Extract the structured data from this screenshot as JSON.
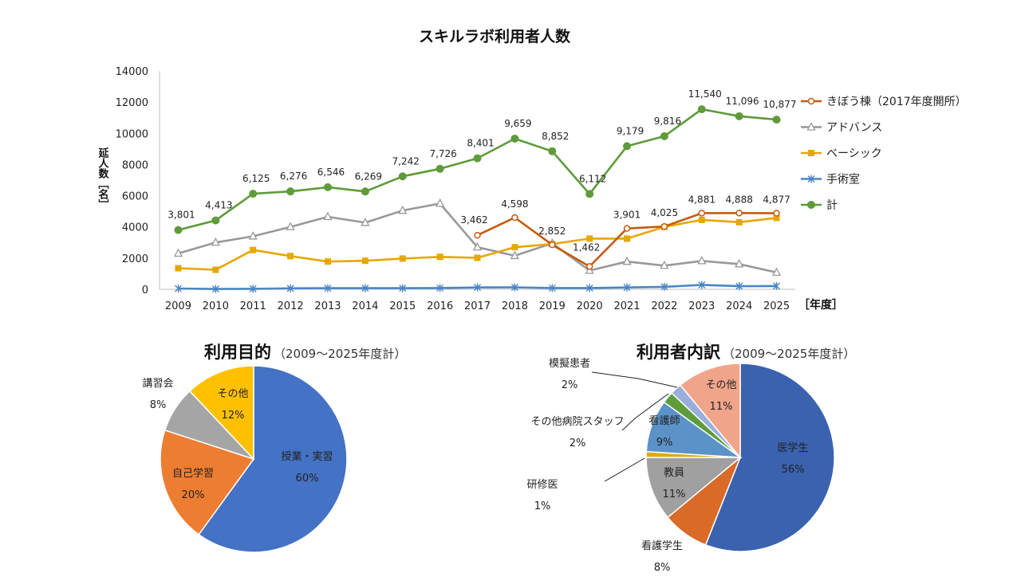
{
  "chart_data": [
    {
      "type": "line",
      "title": "スキルラボ利用者人数",
      "ylabel": "延人数［名］",
      "xlabel_unit": "［年度］",
      "ylim": [
        0,
        14000
      ],
      "yticks": [
        0,
        2000,
        4000,
        6000,
        8000,
        10000,
        12000,
        14000
      ],
      "grid": false,
      "legend_position": "right",
      "x": [
        "2009",
        "2010",
        "2011",
        "2012",
        "2013",
        "2014",
        "2015",
        "2016",
        "2017",
        "2018",
        "2019",
        "2020",
        "2021",
        "2022",
        "2023",
        "2024",
        "2025"
      ],
      "series": [
        {
          "name": "きぼう棟（2017年度開所）",
          "color": "#C55A11",
          "marker": "circle-open",
          "values": [
            null,
            null,
            null,
            null,
            null,
            null,
            null,
            null,
            3462,
            4598,
            2852,
            1462,
            3901,
            4025,
            4881,
            4888,
            4877
          ],
          "labels": [
            null,
            null,
            null,
            null,
            null,
            null,
            null,
            null,
            "3,462",
            "4,598",
            "2,852",
            "1,462",
            "3,901",
            "4,025",
            "4,881",
            "4,888",
            "4,877"
          ]
        },
        {
          "name": "アドバンス",
          "color": "#999999",
          "marker": "triangle-open",
          "values": [
            2300,
            3000,
            3400,
            4000,
            4650,
            4270,
            5050,
            5500,
            2700,
            2150,
            2950,
            1200,
            1780,
            1520,
            1820,
            1620,
            1080
          ]
        },
        {
          "name": "ベーシック",
          "color": "#E6A800",
          "marker": "square",
          "values": [
            1350,
            1250,
            2520,
            2130,
            1780,
            1830,
            1970,
            2080,
            2020,
            2700,
            2900,
            3250,
            3250,
            4000,
            4450,
            4300,
            4580
          ]
        },
        {
          "name": "手術室",
          "color": "#4A86C5",
          "marker": "asterisk",
          "values": [
            50,
            20,
            30,
            60,
            70,
            70,
            70,
            80,
            120,
            130,
            80,
            80,
            120,
            160,
            280,
            200,
            210
          ]
        },
        {
          "name": "計",
          "color": "#5E9B3A",
          "marker": "circle",
          "values": [
            3801,
            4413,
            6125,
            6276,
            6546,
            6269,
            7242,
            7726,
            8401,
            9659,
            8852,
            6112,
            9179,
            9816,
            11540,
            11096,
            10877
          ],
          "labels": [
            "3,801",
            "4,413",
            "6,125",
            "6,276",
            "6,546",
            "6,269",
            "7,242",
            "7,726",
            "8,401",
            "9,659",
            "8,852",
            "6,112",
            "9,179",
            "9,816",
            "11,540",
            "11,096",
            "10,877"
          ]
        }
      ]
    },
    {
      "type": "pie",
      "title": "利用目的",
      "subtitle": "（2009～2025年度計）",
      "slices": [
        {
          "label": "授業・実習",
          "value": 60,
          "pct": "60%",
          "color": "#4472C4"
        },
        {
          "label": "自己学習",
          "value": 20,
          "pct": "20%",
          "color": "#ED7D31"
        },
        {
          "label": "講習会",
          "value": 8,
          "pct": "8%",
          "color": "#A5A5A5"
        },
        {
          "label": "その他",
          "value": 12,
          "pct": "12%",
          "color": "#FFC000"
        }
      ]
    },
    {
      "type": "pie",
      "title": "利用者内訳",
      "subtitle": "（2009～2025年度計）",
      "slices": [
        {
          "label": "医学生",
          "value": 56,
          "pct": "56%",
          "color": "#3A62AE"
        },
        {
          "label": "看護学生",
          "value": 8,
          "pct": "8%",
          "color": "#D96A28"
        },
        {
          "label": "教員",
          "value": 11,
          "pct": "11%",
          "color": "#A0A0A0"
        },
        {
          "label": "研修医",
          "value": 1,
          "pct": "1%",
          "color": "#E0AA10"
        },
        {
          "label": "看護師",
          "value": 9,
          "pct": "9%",
          "color": "#5B93C8"
        },
        {
          "label": "その他病院スタッフ",
          "value": 2,
          "pct": "2%",
          "color": "#5E9B3A"
        },
        {
          "label": "模擬患者",
          "value": 2,
          "pct": "2%",
          "color": "#9AAEDC"
        },
        {
          "label": "その他",
          "value": 11,
          "pct": "11%",
          "color": "#F0A58A"
        }
      ]
    }
  ]
}
